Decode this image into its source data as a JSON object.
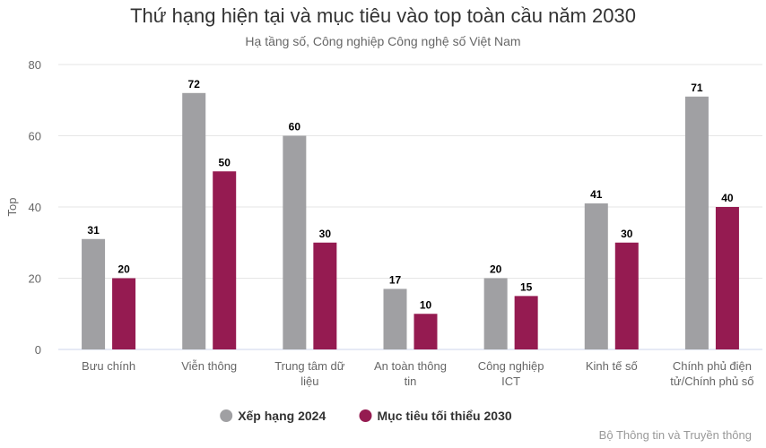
{
  "chart_data": {
    "type": "bar",
    "title": "Thứ hạng hiện tại và mục tiêu vào top toàn cầu năm 2030",
    "subtitle": "Hạ tầng số, Công nghiệp Công nghệ số Việt Nam",
    "ylabel": "Top",
    "xlabel": "",
    "ylim": [
      0,
      80
    ],
    "yticks": [
      0,
      20,
      40,
      60,
      80
    ],
    "grid": true,
    "legend": "bottom-center",
    "categories": [
      [
        "Bưu chính"
      ],
      [
        "Viễn thông"
      ],
      [
        "Trung tâm dữ",
        "liệu"
      ],
      [
        "An toàn thông",
        "tin"
      ],
      [
        "Công nghiệp",
        "ICT"
      ],
      [
        "Kinh tế số"
      ],
      [
        "Chính phủ điện",
        "tử/Chính phủ số"
      ]
    ],
    "series": [
      {
        "name": "Xếp hạng 2024",
        "color": "#a0a0a3",
        "values": [
          31,
          72,
          60,
          17,
          20,
          41,
          71
        ]
      },
      {
        "name": "Mục tiêu tối thiểu 2030",
        "color": "#951b51",
        "values": [
          20,
          50,
          30,
          10,
          15,
          30,
          40
        ]
      }
    ],
    "credit": "Bộ Thông tin và Truyền thông"
  }
}
